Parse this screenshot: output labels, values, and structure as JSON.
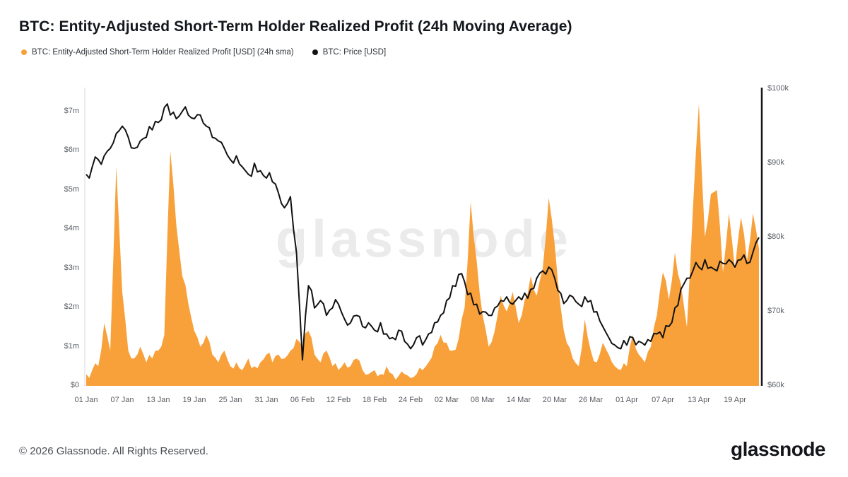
{
  "header": {
    "title": "BTC: Entity-Adjusted Short-Term Holder Realized Profit (24h Moving Average)",
    "legend": [
      {
        "label": "BTC: Entity-Adjusted Short-Term Holder Realized Profit [USD] (24h sma)",
        "color": "#F8A13B"
      },
      {
        "label": "BTC: Price [USD]",
        "color": "#121212"
      }
    ]
  },
  "watermark": "glassnode",
  "footer": {
    "copyright": "© 2026 Glassnode. All Rights Reserved.",
    "logo": "glassnode"
  },
  "chart_data": {
    "type": "area+line",
    "title": "BTC: Entity-Adjusted Short-Term Holder Realized Profit (24h Moving Average)",
    "x_tick_labels": [
      "01 Jan",
      "07 Jan",
      "13 Jan",
      "19 Jan",
      "25 Jan",
      "31 Jan",
      "06 Feb",
      "12 Feb",
      "18 Feb",
      "24 Feb",
      "02 Mar",
      "08 Mar",
      "14 Mar",
      "20 Mar",
      "26 Mar",
      "01 Apr",
      "07 Apr",
      "13 Apr",
      "19 Apr"
    ],
    "x_tick_indices": [
      0,
      6,
      12,
      18,
      24,
      30,
      36,
      42,
      48,
      54,
      60,
      66,
      72,
      78,
      84,
      90,
      96,
      102,
      108
    ],
    "y_left": {
      "ticks": [
        "$0",
        "$1m",
        "$2m",
        "$3m",
        "$4m",
        "$5m",
        "$6m",
        "$7m"
      ],
      "values": [
        0,
        1,
        2,
        3,
        4,
        5,
        6,
        7
      ],
      "range": [
        0,
        7.6
      ],
      "unit": "USD millions"
    },
    "y_right": {
      "ticks": [
        "$60k",
        "$70k",
        "$80k",
        "$90k",
        "$100k"
      ],
      "values": [
        60,
        70,
        80,
        90,
        100
      ],
      "range": [
        60,
        100
      ],
      "unit": "USD thousands"
    },
    "grid": false,
    "legend_position": "top-left",
    "render": {
      "price_jitter": 1.0,
      "profit_jitter": 0.15
    },
    "series": [
      {
        "name": "BTC: Entity-Adjusted Short-Term Holder Realized Profit [USD] (24h sma)",
        "type": "area",
        "axis": "left",
        "color": "#F8A13B",
        "unit": "USD millions",
        "values": [
          0.3,
          0.4,
          0.5,
          1.6,
          0.9,
          5.6,
          2.4,
          0.9,
          0.7,
          1.0,
          0.6,
          0.7,
          0.9,
          1.3,
          6.0,
          4.1,
          2.8,
          2.1,
          1.4,
          1.0,
          1.3,
          0.8,
          0.6,
          0.9,
          0.5,
          0.6,
          0.4,
          0.7,
          0.5,
          0.6,
          0.8,
          0.6,
          0.8,
          0.7,
          0.9,
          1.2,
          1.0,
          1.4,
          0.8,
          0.6,
          0.9,
          0.5,
          0.4,
          0.6,
          0.5,
          0.7,
          0.4,
          0.3,
          0.4,
          0.3,
          0.5,
          0.3,
          0.25,
          0.3,
          0.2,
          0.3,
          0.4,
          0.6,
          1.0,
          1.3,
          1.1,
          0.9,
          1.2,
          2.0,
          4.7,
          3.2,
          1.8,
          1.0,
          1.4,
          2.3,
          1.9,
          2.4,
          1.6,
          2.2,
          2.8,
          2.3,
          3.0,
          4.8,
          3.6,
          2.0,
          1.1,
          0.7,
          0.5,
          1.7,
          0.9,
          0.6,
          1.1,
          0.8,
          0.5,
          0.4,
          0.5,
          1.3,
          0.8,
          0.6,
          1.0,
          1.8,
          2.9,
          2.2,
          3.4,
          2.6,
          1.5,
          4.5,
          7.2,
          3.8,
          4.9,
          5.0,
          2.9,
          4.4,
          3.0,
          4.3,
          3.2,
          4.4,
          3.5
        ]
      },
      {
        "name": "BTC: Price [USD]",
        "type": "line",
        "axis": "right",
        "color": "#121212",
        "unit": "USD thousands",
        "values": [
          88.5,
          89.5,
          90.5,
          91.0,
          92.0,
          94.0,
          95.0,
          93.5,
          92.0,
          93.0,
          93.5,
          94.5,
          95.5,
          97.5,
          96.5,
          96.0,
          97.0,
          96.5,
          96.0,
          96.5,
          95.0,
          93.5,
          93.0,
          92.0,
          90.5,
          91.0,
          89.5,
          88.5,
          90.0,
          89.0,
          88.0,
          87.5,
          86.0,
          84.0,
          85.5,
          78.0,
          63.5,
          73.5,
          70.5,
          71.5,
          69.5,
          70.5,
          71.0,
          69.0,
          68.5,
          69.5,
          68.0,
          68.5,
          67.5,
          68.5,
          67.0,
          66.5,
          67.5,
          66.0,
          65.0,
          66.5,
          65.5,
          67.0,
          68.5,
          69.5,
          71.5,
          73.5,
          75.0,
          74.0,
          72.5,
          71.0,
          70.0,
          69.5,
          70.5,
          71.5,
          72.0,
          71.0,
          72.0,
          72.5,
          73.0,
          74.5,
          75.5,
          76.0,
          74.5,
          72.5,
          71.5,
          72.0,
          71.0,
          72.0,
          71.5,
          70.0,
          68.0,
          66.5,
          65.5,
          65.0,
          65.5,
          66.5,
          66.0,
          65.5,
          66.0,
          67.0,
          66.5,
          68.0,
          70.5,
          73.0,
          74.5,
          75.5,
          76.0,
          77.0,
          76.0,
          75.5,
          76.5,
          77.0,
          76.0,
          77.0,
          76.5,
          78.0,
          80.0
        ]
      }
    ]
  }
}
